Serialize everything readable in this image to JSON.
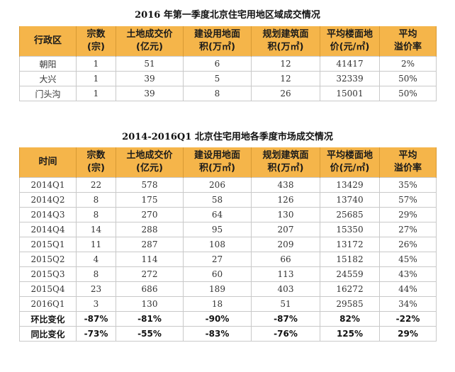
{
  "table1": {
    "title": "2016 年第一季度北京住宅用地区域成交情况",
    "headers": [
      "行政区",
      "宗数\n(宗)",
      "土地成交价\n(亿元)",
      "建设用地面\n积(万㎡)",
      "规划建筑面\n积(万㎡)",
      "平均楼面地\n价(元/㎡)",
      "平均\n溢价率"
    ],
    "rows": [
      [
        "朝阳",
        "1",
        "51",
        "6",
        "12",
        "41417",
        "2%"
      ],
      [
        "大兴",
        "1",
        "39",
        "5",
        "12",
        "32339",
        "50%"
      ],
      [
        "门头沟",
        "1",
        "39",
        "8",
        "26",
        "15001",
        "50%"
      ]
    ]
  },
  "table2": {
    "title": "2014-2016Q1 北京住宅用地各季度市场成交情况",
    "headers": [
      "时间",
      "宗数\n(宗)",
      "土地成交价\n(亿元)",
      "建设用地面\n积(万㎡)",
      "规划建筑面\n积(万㎡)",
      "平均楼面地\n价(元/㎡)",
      "平均\n溢价率"
    ],
    "rows": [
      [
        "2014Q1",
        "22",
        "578",
        "206",
        "438",
        "13429",
        "35%"
      ],
      [
        "2014Q2",
        "8",
        "175",
        "58",
        "126",
        "13740",
        "57%"
      ],
      [
        "2014Q3",
        "8",
        "270",
        "64",
        "130",
        "25685",
        "29%"
      ],
      [
        "2014Q4",
        "14",
        "288",
        "95",
        "207",
        "15350",
        "27%"
      ],
      [
        "2015Q1",
        "11",
        "287",
        "108",
        "209",
        "13172",
        "26%"
      ],
      [
        "2015Q2",
        "4",
        "114",
        "27",
        "66",
        "15182",
        "45%"
      ],
      [
        "2015Q3",
        "8",
        "272",
        "60",
        "113",
        "24559",
        "43%"
      ],
      [
        "2015Q4",
        "23",
        "686",
        "189",
        "403",
        "16272",
        "44%"
      ],
      [
        "2016Q1",
        "3",
        "130",
        "18",
        "51",
        "29585",
        "34%"
      ]
    ],
    "summary_rows": [
      [
        "环比变化",
        "-87%",
        "-81%",
        "-90%",
        "-87%",
        "82%",
        "-22%"
      ],
      [
        "同比变化",
        "-73%",
        "-55%",
        "-83%",
        "-76%",
        "125%",
        "29%"
      ]
    ]
  }
}
